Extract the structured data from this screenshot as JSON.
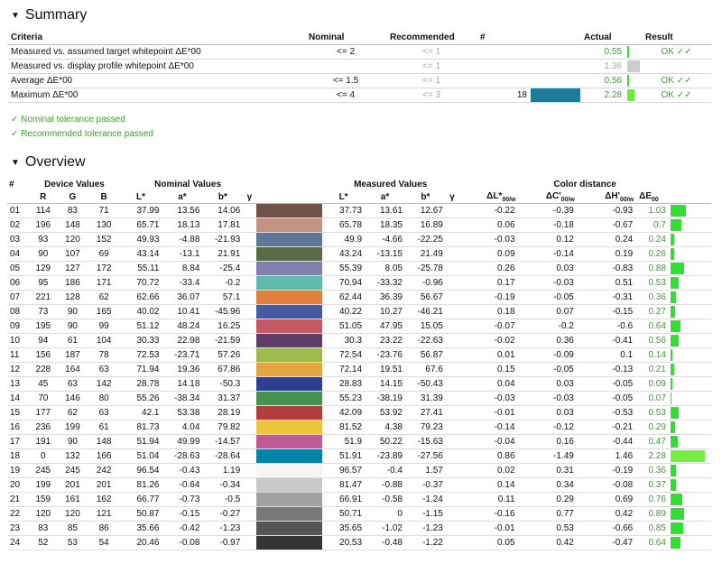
{
  "summary": {
    "title": "Summary",
    "headers": {
      "criteria": "Criteria",
      "nominal": "Nominal",
      "recommended": "Recommended",
      "count": "#",
      "actual": "Actual",
      "result": "Result"
    },
    "rows": [
      {
        "criteria": "Measured vs. assumed target whitepoint ΔE*00",
        "nominal": "<= 2",
        "recommended": "<= 1",
        "count": "",
        "color": "",
        "actual": "0.55",
        "actual_status": "pass",
        "bar_fraction": 0.15,
        "bar_color": "#33dd33",
        "result": "OK ✓✓"
      },
      {
        "criteria": "Measured vs. display profile whitepoint ΔE*00",
        "nominal": "",
        "recommended": "<= 1",
        "count": "",
        "color": "",
        "actual": "1.36",
        "actual_status": "neutral",
        "bar_fraction": 1.0,
        "bar_color": "#cccccc",
        "result": ""
      },
      {
        "criteria": "Average ΔE*00",
        "nominal": "<= 1.5",
        "recommended": "<= 1",
        "count": "",
        "color": "",
        "actual": "0.56",
        "actual_status": "pass",
        "bar_fraction": 0.15,
        "bar_color": "#33dd33",
        "result": "OK ✓✓"
      },
      {
        "criteria": "Maximum ΔE*00",
        "nominal": "<= 4",
        "recommended": "<= 3",
        "count": "18",
        "color": "#1c7c99",
        "actual": "2.28",
        "actual_status": "pass",
        "bar_fraction": 0.6,
        "bar_color": "#66ee33",
        "result": "OK ✓✓"
      }
    ],
    "messages": [
      "✓ Nominal tolerance passed",
      "✓ Recommended tolerance passed"
    ]
  },
  "overview": {
    "title": "Overview",
    "group_headers": {
      "num": "#",
      "device": "Device Values",
      "nominal": "Nominal Values",
      "measured": "Measured Values",
      "distance": "Color distance"
    },
    "sub_headers": {
      "R": "R",
      "G": "G",
      "B": "B",
      "L": "L*",
      "a": "a*",
      "b": "b*",
      "gamma": "γ",
      "dL": "ΔL*",
      "dC": "ΔC'",
      "dH": "ΔH'",
      "dE": "ΔE",
      "sub00w": "00/w",
      "sub00": "00"
    },
    "rows": [
      {
        "id": "01",
        "R": "114",
        "G": "83",
        "B": "71",
        "nL": "37.99",
        "na": "13.56",
        "nb": "14.06",
        "swatch": "#725347",
        "mL": "37.73",
        "ma": "13.61",
        "mb": "12.67",
        "dL": "-0.22",
        "dC": "-0.39",
        "dH": "-0.93",
        "dE": "1.03",
        "dEv": 1.03
      },
      {
        "id": "02",
        "R": "196",
        "G": "148",
        "B": "130",
        "nL": "65.71",
        "na": "18.13",
        "nb": "17.81",
        "swatch": "#c49482",
        "mL": "65.78",
        "ma": "18.35",
        "mb": "16.89",
        "dL": "0.06",
        "dC": "-0.18",
        "dH": "-0.67",
        "dE": "0.7",
        "dEv": 0.7
      },
      {
        "id": "03",
        "R": "93",
        "G": "120",
        "B": "152",
        "nL": "49.93",
        "na": "-4.88",
        "nb": "-21.93",
        "swatch": "#5d7898",
        "mL": "49.9",
        "ma": "-4.66",
        "mb": "-22.25",
        "dL": "-0.03",
        "dC": "0.12",
        "dH": "0.24",
        "dE": "0.24",
        "dEv": 0.24
      },
      {
        "id": "04",
        "R": "90",
        "G": "107",
        "B": "69",
        "nL": "43.14",
        "na": "-13.1",
        "nb": "21.91",
        "swatch": "#5a6b45",
        "mL": "43.24",
        "ma": "-13.15",
        "mb": "21.49",
        "dL": "0.09",
        "dC": "-0.14",
        "dH": "0.19",
        "dE": "0.26",
        "dEv": 0.26
      },
      {
        "id": "05",
        "R": "129",
        "G": "127",
        "B": "172",
        "nL": "55.11",
        "na": "8.84",
        "nb": "-25.4",
        "swatch": "#817fac",
        "mL": "55.39",
        "ma": "8.05",
        "mb": "-25.78",
        "dL": "0.26",
        "dC": "0.03",
        "dH": "-0.83",
        "dE": "0.88",
        "dEv": 0.88
      },
      {
        "id": "06",
        "R": "95",
        "G": "186",
        "B": "171",
        "nL": "70.72",
        "na": "-33.4",
        "nb": "-0.2",
        "swatch": "#5fbaab",
        "mL": "70.94",
        "ma": "-33.32",
        "mb": "-0.96",
        "dL": "0.17",
        "dC": "-0.03",
        "dH": "0.51",
        "dE": "0.53",
        "dEv": 0.53
      },
      {
        "id": "07",
        "R": "221",
        "G": "128",
        "B": "62",
        "nL": "62.66",
        "na": "36.07",
        "nb": "57.1",
        "swatch": "#dd803e",
        "mL": "62.44",
        "ma": "36.39",
        "mb": "56.67",
        "dL": "-0.19",
        "dC": "-0.05",
        "dH": "-0.31",
        "dE": "0.36",
        "dEv": 0.36
      },
      {
        "id": "08",
        "R": "73",
        "G": "90",
        "B": "165",
        "nL": "40.02",
        "na": "10.41",
        "nb": "-45.96",
        "swatch": "#495aa5",
        "mL": "40.22",
        "ma": "10.27",
        "mb": "-46.21",
        "dL": "0.18",
        "dC": "0.07",
        "dH": "-0.15",
        "dE": "0.27",
        "dEv": 0.27
      },
      {
        "id": "09",
        "R": "195",
        "G": "90",
        "B": "99",
        "nL": "51.12",
        "na": "48.24",
        "nb": "16.25",
        "swatch": "#c35a63",
        "mL": "51.05",
        "ma": "47.95",
        "mb": "15.05",
        "dL": "-0.07",
        "dC": "-0.2",
        "dH": "-0.6",
        "dE": "0.64",
        "dEv": 0.64
      },
      {
        "id": "10",
        "R": "94",
        "G": "61",
        "B": "104",
        "nL": "30.33",
        "na": "22.98",
        "nb": "-21.59",
        "swatch": "#5e3d68",
        "mL": "30.3",
        "ma": "23.22",
        "mb": "-22.63",
        "dL": "-0.02",
        "dC": "0.36",
        "dH": "-0.41",
        "dE": "0.56",
        "dEv": 0.56
      },
      {
        "id": "11",
        "R": "156",
        "G": "187",
        "B": "78",
        "nL": "72.53",
        "na": "-23.71",
        "nb": "57.26",
        "swatch": "#9cbb4e",
        "mL": "72.54",
        "ma": "-23.76",
        "mb": "56.87",
        "dL": "0.01",
        "dC": "-0.09",
        "dH": "0.1",
        "dE": "0.14",
        "dEv": 0.14
      },
      {
        "id": "12",
        "R": "228",
        "G": "164",
        "B": "63",
        "nL": "71.94",
        "na": "19.36",
        "nb": "67.86",
        "swatch": "#e4a43f",
        "mL": "72.14",
        "ma": "19.51",
        "mb": "67.6",
        "dL": "0.15",
        "dC": "-0.05",
        "dH": "-0.13",
        "dE": "0.21",
        "dEv": 0.21
      },
      {
        "id": "13",
        "R": "45",
        "G": "63",
        "B": "142",
        "nL": "28.78",
        "na": "14.18",
        "nb": "-50.3",
        "swatch": "#2d3f8e",
        "mL": "28.83",
        "ma": "14.15",
        "mb": "-50.43",
        "dL": "0.04",
        "dC": "0.03",
        "dH": "-0.05",
        "dE": "0.09",
        "dEv": 0.09
      },
      {
        "id": "14",
        "R": "70",
        "G": "146",
        "B": "80",
        "nL": "55.26",
        "na": "-38.34",
        "nb": "31.37",
        "swatch": "#469250",
        "mL": "55.23",
        "ma": "-38.19",
        "mb": "31.39",
        "dL": "-0.03",
        "dC": "-0.03",
        "dH": "-0.05",
        "dE": "0.07",
        "dEv": 0.07
      },
      {
        "id": "15",
        "R": "177",
        "G": "62",
        "B": "63",
        "nL": "42.1",
        "na": "53.38",
        "nb": "28.19",
        "swatch": "#b13e3f",
        "mL": "42.09",
        "ma": "53.92",
        "mb": "27.41",
        "dL": "-0.01",
        "dC": "0.03",
        "dH": "-0.53",
        "dE": "0.53",
        "dEv": 0.53
      },
      {
        "id": "16",
        "R": "236",
        "G": "199",
        "B": "61",
        "nL": "81.73",
        "na": "4.04",
        "nb": "79.82",
        "swatch": "#ecc73d",
        "mL": "81.52",
        "ma": "4.38",
        "mb": "79.23",
        "dL": "-0.14",
        "dC": "-0.12",
        "dH": "-0.21",
        "dE": "0.29",
        "dEv": 0.29
      },
      {
        "id": "17",
        "R": "191",
        "G": "90",
        "B": "148",
        "nL": "51.94",
        "na": "49.99",
        "nb": "-14.57",
        "swatch": "#bf5a94",
        "mL": "51.9",
        "ma": "50.22",
        "mb": "-15.63",
        "dL": "-0.04",
        "dC": "0.16",
        "dH": "-0.44",
        "dE": "0.47",
        "dEv": 0.47
      },
      {
        "id": "18",
        "R": "0",
        "G": "132",
        "B": "166",
        "nL": "51.04",
        "na": "-28.63",
        "nb": "-28.64",
        "swatch": "#0084a6",
        "mL": "51.91",
        "ma": "-23.89",
        "mb": "-27.56",
        "dL": "0.86",
        "dC": "-1.49",
        "dH": "1.46",
        "dE": "2.28",
        "dEv": 2.28
      },
      {
        "id": "19",
        "R": "245",
        "G": "245",
        "B": "242",
        "nL": "96.54",
        "na": "-0.43",
        "nb": "1.19",
        "swatch": "#f5f5f2",
        "mL": "96.57",
        "ma": "-0.4",
        "mb": "1.57",
        "dL": "0.02",
        "dC": "0.31",
        "dH": "-0.19",
        "dE": "0.36",
        "dEv": 0.36
      },
      {
        "id": "20",
        "R": "199",
        "G": "201",
        "B": "201",
        "nL": "81.26",
        "na": "-0.64",
        "nb": "-0.34",
        "swatch": "#c7c9c9",
        "mL": "81.47",
        "ma": "-0.88",
        "mb": "-0.37",
        "dL": "0.14",
        "dC": "0.34",
        "dH": "-0.08",
        "dE": "0.37",
        "dEv": 0.37
      },
      {
        "id": "21",
        "R": "159",
        "G": "161",
        "B": "162",
        "nL": "66.77",
        "na": "-0.73",
        "nb": "-0.5",
        "swatch": "#9fa1a2",
        "mL": "66.91",
        "ma": "-0.58",
        "mb": "-1.24",
        "dL": "0.11",
        "dC": "0.29",
        "dH": "0.69",
        "dE": "0.76",
        "dEv": 0.76
      },
      {
        "id": "22",
        "R": "120",
        "G": "120",
        "B": "121",
        "nL": "50.87",
        "na": "-0.15",
        "nb": "-0.27",
        "swatch": "#787879",
        "mL": "50.71",
        "ma": "0",
        "mb": "-1.15",
        "dL": "-0.16",
        "dC": "0.77",
        "dH": "0.42",
        "dE": "0.89",
        "dEv": 0.89
      },
      {
        "id": "23",
        "R": "83",
        "G": "85",
        "B": "86",
        "nL": "35.66",
        "na": "-0.42",
        "nb": "-1.23",
        "swatch": "#535556",
        "mL": "35.65",
        "ma": "-1.02",
        "mb": "-1.23",
        "dL": "-0.01",
        "dC": "0.53",
        "dH": "-0.66",
        "dE": "0.85",
        "dEv": 0.85
      },
      {
        "id": "24",
        "R": "52",
        "G": "53",
        "B": "54",
        "nL": "20.46",
        "na": "-0.08",
        "nb": "-0.97",
        "swatch": "#343536",
        "mL": "20.53",
        "ma": "-0.48",
        "mb": "-1.22",
        "dL": "0.05",
        "dC": "0.42",
        "dH": "-0.47",
        "dE": "0.64",
        "dEv": 0.64
      }
    ]
  },
  "colors": {
    "pass_text": "#3aa12f",
    "bar_green": "#33dd33",
    "bar_lightgreen": "#77ee44",
    "grey_text": "#aaaaaa"
  }
}
